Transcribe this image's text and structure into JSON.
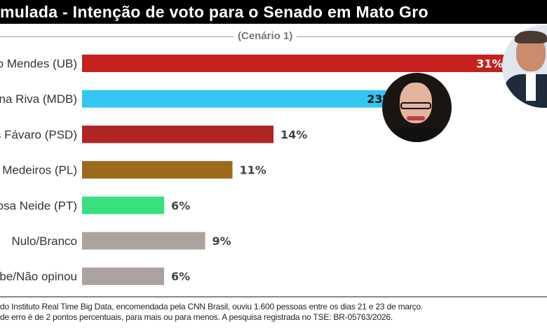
{
  "header": {
    "title": "mulada - Intenção de voto para o Senado em Mato Gro",
    "subtitle": "(Cenário 1)"
  },
  "chart_data": {
    "type": "bar",
    "orientation": "horizontal",
    "title": "Estimulada - Intenção de voto para o Senado em Mato Grosso",
    "subtitle": "(Cenário 1)",
    "categories": [
      "o Mendes (UB)",
      "na Riva (MDB)",
      "os Fávaro (PSD)",
      "Medeiros (PL)",
      "osa Neide (PT)",
      "Nulo/Branco",
      "abe/Não opinou"
    ],
    "values": [
      31,
      23,
      14,
      11,
      6,
      9,
      6
    ],
    "value_labels": [
      "31%",
      "23%",
      "14%",
      "11%",
      "6%",
      "9%",
      "6%"
    ],
    "colors": [
      "#c4211f",
      "#33c5f3",
      "#b02424",
      "#9b6b1b",
      "#38e07f",
      "#aca2a0",
      "#aca2a0"
    ],
    "unit": "%",
    "xlim": [
      0,
      32
    ]
  },
  "footer": {
    "line1": "do Instituto Real Time Big Data, encomendada pela CNN Brasil, ouviu 1.600 pessoas entre os dias 21 e 23 de março.",
    "line2": " de erro é de 2 pontos percentuais, para mais ou para menos. A pesquisa  registrada no TSE: BR-05763/2026."
  }
}
